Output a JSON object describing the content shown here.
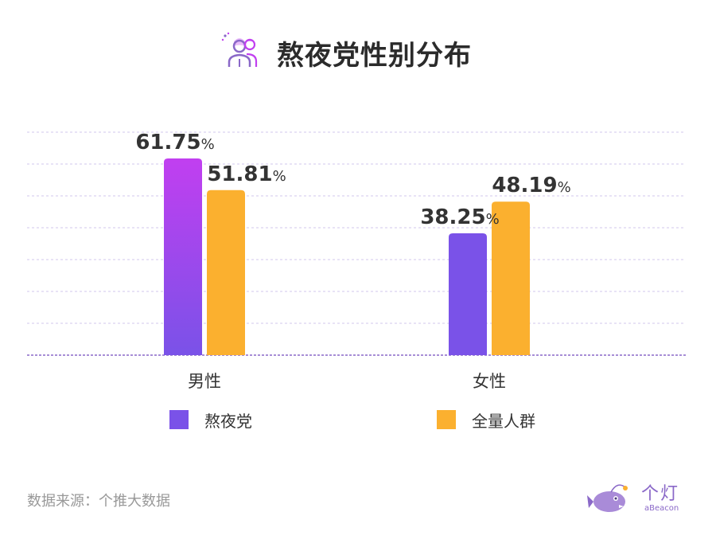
{
  "header": {
    "title": "熬夜党性别分布",
    "icon": "people-icon"
  },
  "colors": {
    "night_owl_top": "#c13ff0",
    "night_owl_bottom": "#7a52e8",
    "night_owl_solid": "#7a52e8",
    "all_people": "#fbb02f",
    "grid": "#d9d2f0",
    "baseline": "#8a68c8"
  },
  "chart_data": {
    "type": "bar",
    "title": "熬夜党性别分布",
    "categories": [
      "男性",
      "女性"
    ],
    "series": [
      {
        "name": "熬夜党",
        "values": [
          61.75,
          38.25
        ]
      },
      {
        "name": "全量人群",
        "values": [
          51.81,
          48.19
        ]
      }
    ],
    "value_suffix": "%",
    "ylim": [
      0,
      70
    ],
    "grid": true,
    "legend_position": "bottom"
  },
  "footer": {
    "source": "数据来源：个推大数据",
    "logo_text": "个灯",
    "logo_sub": "aBeacon"
  }
}
